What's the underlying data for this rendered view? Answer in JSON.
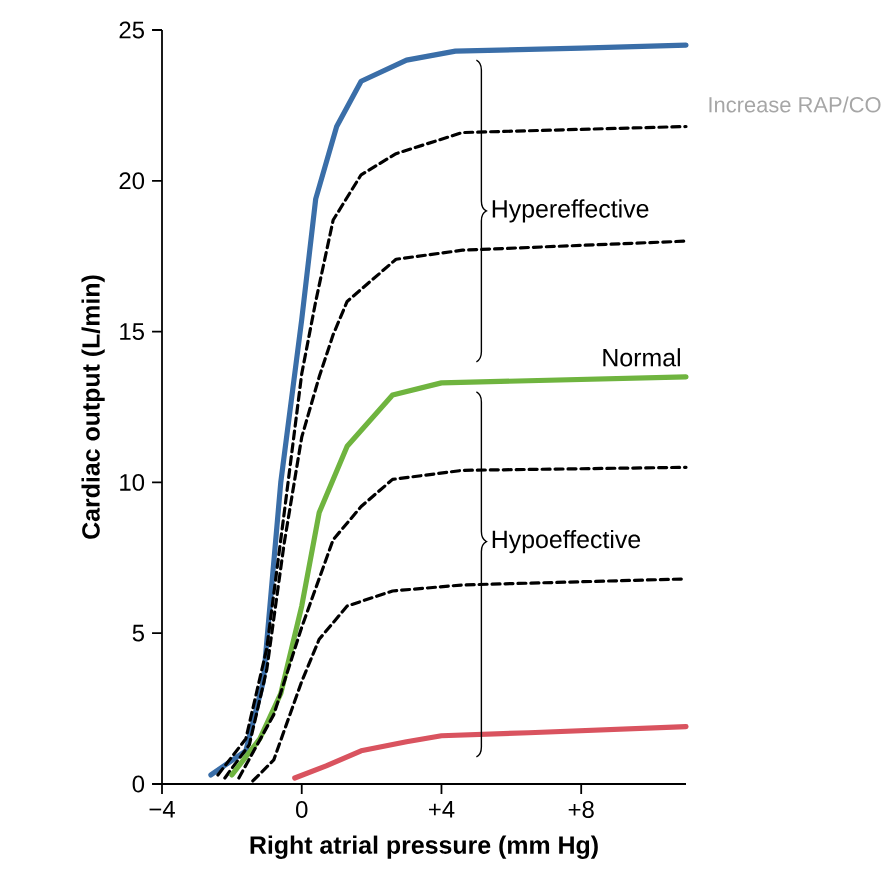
{
  "chart_data": {
    "type": "line",
    "xlabel": "Right atrial pressure (mm Hg)",
    "ylabel": "Cardiac output (L/min)",
    "xlim": [
      -4,
      11
    ],
    "ylim": [
      0,
      25
    ],
    "xticks": [
      {
        "value": -4,
        "label": "−4"
      },
      {
        "value": 0,
        "label": "0"
      },
      {
        "value": 4,
        "label": "+4"
      },
      {
        "value": 8,
        "label": "+8"
      }
    ],
    "yticks": [
      0,
      5,
      10,
      15,
      20,
      25
    ],
    "grid": false,
    "series": [
      {
        "color": "#3a6ea8",
        "line_style": "solid",
        "x": [
          -2.6,
          -1.6,
          -1.1,
          -0.6,
          0,
          0.4,
          1,
          1.7,
          3,
          4.4,
          8,
          11
        ],
        "values": [
          0.3,
          1.1,
          3.4,
          10,
          15.4,
          19.4,
          21.8,
          23.3,
          24,
          24.3,
          24.4,
          24.5
        ]
      },
      {
        "color": "#000000",
        "line_style": "dashed",
        "x": [
          -2.4,
          -1.6,
          -1,
          -0.5,
          0,
          0.4,
          0.9,
          1.7,
          2.7,
          4.6,
          11
        ],
        "values": [
          0.3,
          1.5,
          4.5,
          9,
          13.6,
          16,
          18.7,
          20.2,
          20.9,
          21.6,
          21.8
        ]
      },
      {
        "color": "#000000",
        "line_style": "dashed",
        "x": [
          -2.2,
          -1.5,
          -1,
          -0.5,
          0,
          0.5,
          0.9,
          1.3,
          2.7,
          4.6,
          11
        ],
        "values": [
          0.2,
          1.3,
          3.8,
          8,
          11.5,
          13.5,
          14.9,
          16,
          17.4,
          17.7,
          18
        ]
      },
      {
        "name": "Normal",
        "color": "#6fb43f",
        "line_style": "solid",
        "x": [
          -2,
          -1.2,
          -0.6,
          0,
          0.5,
          1.3,
          2.6,
          4,
          11
        ],
        "values": [
          0.3,
          1.5,
          3,
          5.9,
          9,
          11.2,
          12.9,
          13.3,
          13.5
        ]
      },
      {
        "color": "#000000",
        "line_style": "dashed",
        "x": [
          -1.8,
          -0.8,
          0,
          0.9,
          1.7,
          2.6,
          4.6,
          11
        ],
        "values": [
          0.2,
          2.3,
          5.2,
          8.1,
          9.2,
          10.1,
          10.4,
          10.5
        ]
      },
      {
        "color": "#000000",
        "line_style": "dashed",
        "x": [
          -1.4,
          -0.8,
          0,
          0.5,
          1.3,
          2.6,
          4.6,
          11
        ],
        "values": [
          0.1,
          0.8,
          3.4,
          4.8,
          5.9,
          6.4,
          6.6,
          6.8
        ]
      },
      {
        "color": "#d9535f",
        "line_style": "solid",
        "x": [
          -0.2,
          0.7,
          1.7,
          3,
          4,
          6.5,
          11
        ],
        "values": [
          0.2,
          0.6,
          1.1,
          1.4,
          1.6,
          1.7,
          1.9
        ]
      }
    ],
    "annotations": [
      "Hypereffective",
      "Hypoeffective",
      "Increase RAP/CO"
    ]
  }
}
